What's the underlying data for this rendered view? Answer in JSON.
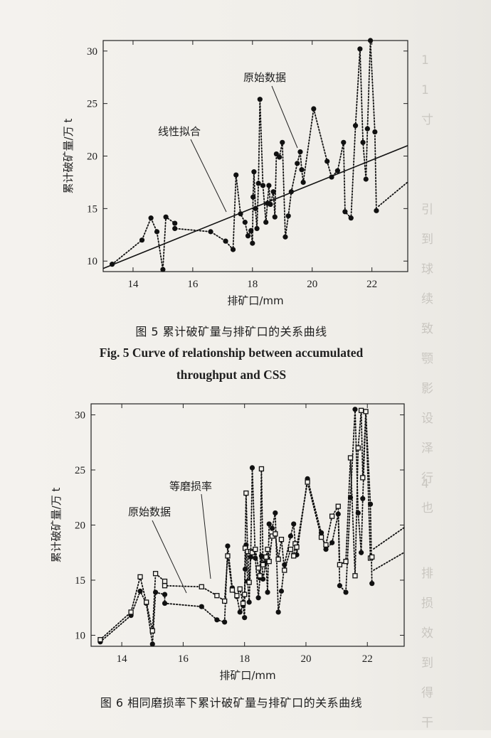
{
  "side_text": {
    "lines_top": [
      "1",
      "1",
      "寸",
      "",
      "",
      "引",
      "到",
      "球",
      "续",
      "致",
      "颚",
      "影",
      "设",
      "泽",
      "行",
      "也"
    ],
    "lines_bottom": [
      "4",
      "",
      "",
      "排",
      "损",
      "效",
      "到",
      "得",
      "干"
    ]
  },
  "figure5": {
    "caption_cn": "图 5   累计破矿量与排矿口的关系曲线",
    "caption_en_line1": "Fig. 5     Curve of relationship between accumulated",
    "caption_en_line2": "throughput and CSS"
  },
  "figure6": {
    "caption_cn": "图 6   相同磨损率下累计破矿量与排矿口的关系曲线"
  },
  "chart_data": [
    {
      "type": "scatter",
      "title": "",
      "xlabel": "排矿口/mm",
      "ylabel": "累计破矿量/万 t",
      "xlim": [
        13,
        23.2
      ],
      "ylim": [
        9,
        31
      ],
      "xticks": [
        14,
        16,
        18,
        20,
        22
      ],
      "yticks": [
        10,
        15,
        20,
        25,
        30
      ],
      "annotations": [
        "原始数据",
        "线性拟合"
      ],
      "series": [
        {
          "name": "原始数据",
          "marker": "filled-circle",
          "line": "dotted",
          "x": [
            13.3,
            14.3,
            14.6,
            14.8,
            15.0,
            15.1,
            15.4,
            15.4,
            16.6,
            17.1,
            17.35,
            17.45,
            17.6,
            17.75,
            17.85,
            17.95,
            18.0,
            18.02,
            18.05,
            18.1,
            18.15,
            18.2,
            18.25,
            18.35,
            18.45,
            18.5,
            18.55,
            18.6,
            18.7,
            18.75,
            18.8,
            18.9,
            19.0,
            19.1,
            19.2,
            19.3,
            19.5,
            19.6,
            19.65,
            19.7,
            20.05,
            20.5,
            20.65,
            20.85,
            21.05,
            21.1,
            21.3,
            21.45,
            21.6,
            21.7,
            21.8,
            21.85,
            21.95,
            22.1,
            22.15
          ],
          "y": [
            9.7,
            12.0,
            14.1,
            12.8,
            9.2,
            14.2,
            13.6,
            13.1,
            12.8,
            11.9,
            11.1,
            18.2,
            14.5,
            13.7,
            12.4,
            12.9,
            11.7,
            16.1,
            18.5,
            15.0,
            13.1,
            17.4,
            25.4,
            17.2,
            13.7,
            15.5,
            17.2,
            15.4,
            16.6,
            14.2,
            20.2,
            19.9,
            21.3,
            12.3,
            14.3,
            16.6,
            19.3,
            20.4,
            18.7,
            17.5,
            24.5,
            19.5,
            18.0,
            18.6,
            21.3,
            14.7,
            14.1,
            22.9,
            30.2,
            21.3,
            17.8,
            22.6,
            31.0,
            22.3,
            14.8
          ]
        },
        {
          "name": "线性拟合",
          "marker": "none",
          "line": "solid",
          "x": [
            13.0,
            23.2
          ],
          "y": [
            9.3,
            21.0
          ]
        }
      ]
    },
    {
      "type": "scatter",
      "title": "",
      "xlabel": "排矿口/mm",
      "ylabel": "累计破矿量/万 t",
      "xlim": [
        13,
        23.2
      ],
      "ylim": [
        9,
        31
      ],
      "xticks": [
        14,
        16,
        18,
        20,
        22
      ],
      "yticks": [
        10,
        15,
        20,
        25,
        30
      ],
      "annotations": [
        "等磨损率",
        "原始数据"
      ],
      "series": [
        {
          "name": "原始数据",
          "marker": "filled-circle",
          "line": "dotted",
          "x": [
            13.3,
            14.3,
            14.6,
            14.8,
            15.0,
            15.1,
            15.4,
            15.4,
            16.6,
            17.1,
            17.35,
            17.45,
            17.6,
            17.75,
            17.85,
            17.95,
            18.0,
            18.02,
            18.05,
            18.1,
            18.15,
            18.2,
            18.25,
            18.35,
            18.45,
            18.5,
            18.55,
            18.6,
            18.7,
            18.75,
            18.8,
            18.9,
            19.0,
            19.1,
            19.2,
            19.3,
            19.5,
            19.6,
            19.65,
            19.7,
            20.05,
            20.5,
            20.65,
            20.85,
            21.05,
            21.1,
            21.3,
            21.45,
            21.6,
            21.7,
            21.8,
            21.85,
            21.95,
            22.1,
            22.15
          ],
          "y": [
            9.4,
            11.8,
            14.0,
            12.9,
            9.2,
            13.9,
            13.7,
            12.9,
            12.6,
            11.4,
            11.2,
            18.1,
            14.3,
            13.5,
            12.1,
            12.7,
            11.6,
            16.0,
            18.2,
            14.9,
            13.0,
            17.1,
            25.2,
            17.0,
            13.4,
            15.2,
            17.2,
            15.1,
            16.6,
            13.9,
            20.1,
            19.7,
            21.1,
            12.1,
            14.0,
            16.4,
            19.0,
            20.1,
            18.3,
            17.3,
            24.2,
            19.3,
            17.8,
            18.4,
            21.0,
            14.5,
            13.9,
            22.5,
            30.5,
            21.1,
            17.5,
            22.4,
            30.3,
            21.9,
            14.7
          ]
        },
        {
          "name": "等磨损率",
          "marker": "open-square",
          "line": "dotted",
          "x": [
            13.3,
            14.3,
            14.6,
            14.8,
            15.0,
            15.1,
            15.4,
            15.4,
            16.6,
            17.1,
            17.35,
            17.45,
            17.6,
            17.75,
            17.85,
            17.95,
            18.0,
            18.02,
            18.05,
            18.1,
            18.15,
            18.2,
            18.25,
            18.35,
            18.45,
            18.5,
            18.55,
            18.6,
            18.7,
            18.75,
            18.8,
            18.9,
            19.0,
            19.1,
            19.2,
            19.3,
            19.5,
            19.6,
            19.65,
            19.7,
            20.05,
            20.5,
            20.65,
            20.85,
            21.05,
            21.1,
            21.3,
            21.45,
            21.6,
            21.7,
            21.8,
            21.85,
            21.95,
            22.1,
            22.15
          ],
          "y": [
            9.6,
            12.1,
            15.3,
            13.0,
            10.4,
            15.6,
            14.9,
            14.5,
            14.4,
            13.6,
            13.1,
            17.2,
            14.1,
            13.6,
            14.2,
            12.9,
            13.7,
            17.9,
            22.9,
            17.6,
            14.8,
            17.6,
            17.5,
            17.8,
            16.1,
            15.4,
            25.1,
            16.4,
            17.1,
            17.8,
            16.7,
            19.0,
            19.2,
            16.9,
            18.7,
            15.9,
            17.8,
            17.2,
            18.3,
            18.0,
            23.9,
            18.9,
            18.2,
            20.8,
            21.7,
            16.4,
            16.7,
            26.1,
            15.4,
            27.0,
            30.4,
            24.3,
            30.3,
            17.0,
            17.1
          ]
        }
      ]
    }
  ]
}
